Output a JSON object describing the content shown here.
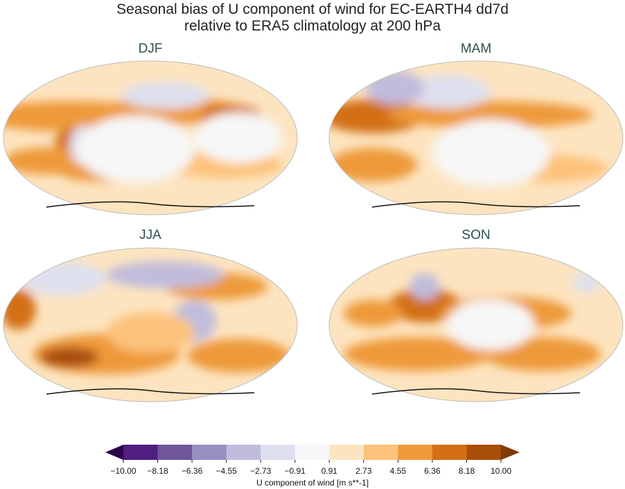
{
  "title_line1": "Seasonal bias of U component of wind for EC-EARTH4 dd7d",
  "title_line2": "relative to ERA5 climatology at 200 hPa",
  "chart_data": {
    "type": "heatmap",
    "projection": "Robinson",
    "panels": [
      "DJF",
      "MAM",
      "JJA",
      "SON"
    ],
    "colorbar": {
      "label": "U component of wind [m s**-1]",
      "ticks": [
        "−10.00",
        "−8.18",
        "−6.36",
        "−4.55",
        "−2.73",
        "−0.91",
        "0.91",
        "2.73",
        "4.55",
        "6.36",
        "8.18",
        "10.00"
      ],
      "levels": [
        -10.0,
        -8.18,
        -6.36,
        -4.55,
        -2.73,
        -0.91,
        0.91,
        2.73,
        4.55,
        6.36,
        8.18,
        10.0
      ],
      "extend": "both",
      "colors": [
        "#2d004b",
        "#4f1e7e",
        "#6f559b",
        "#9a8fc1",
        "#c1bcdc",
        "#dfe0ef",
        "#f7f7f7",
        "#fde4c0",
        "#fdc27c",
        "#ee9a3b",
        "#d37013",
        "#a84e08",
        "#7f3b08"
      ]
    }
  }
}
